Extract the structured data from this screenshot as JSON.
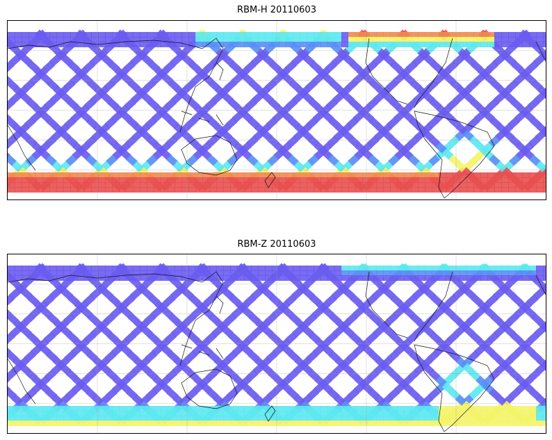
{
  "panels": [
    {
      "title": "RBM-H 20110603",
      "variable": "RBM-H",
      "date": "20110603"
    },
    {
      "title": "RBM-Z 20110603",
      "variable": "RBM-Z",
      "date": "20110603"
    }
  ],
  "map": {
    "projection": "equirectangular",
    "coastlines": true,
    "gridlines": true,
    "colormap": [
      "#6a5cf0",
      "#5a8ef5",
      "#5de8f0",
      "#f4f46a",
      "#f08a50",
      "#e85050"
    ]
  }
}
